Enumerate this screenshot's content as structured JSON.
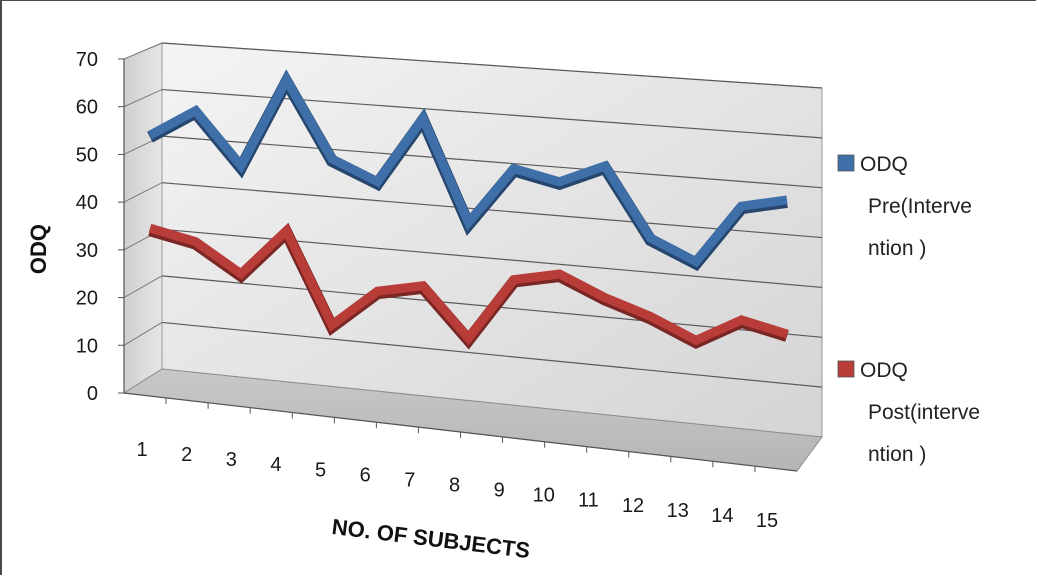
{
  "chart_data": {
    "type": "line",
    "title": "",
    "xlabel": "NO. OF SUBJECTS",
    "ylabel": "ODQ",
    "ylim": [
      0,
      70
    ],
    "y_ticks": [
      0,
      10,
      20,
      30,
      40,
      50,
      60,
      70
    ],
    "categories": [
      "1",
      "2",
      "3",
      "4",
      "5",
      "6",
      "7",
      "8",
      "9",
      "10",
      "11",
      "12",
      "13",
      "14",
      "15"
    ],
    "grid": true,
    "legend_position": "right",
    "series": [
      {
        "name": "ODQ Pre(Intervention )",
        "legend_lines": [
          "ODQ",
          "Pre(Interve",
          "ntion )"
        ],
        "color": "#3f6fa8",
        "values": [
          50,
          56,
          45,
          64,
          48,
          44,
          58,
          37,
          49,
          47,
          51,
          37,
          33,
          45,
          47
        ]
      },
      {
        "name": "ODQ Post(intervention )",
        "legend_lines": [
          "ODQ",
          "Post(interve",
          "ntion )"
        ],
        "color": "#b83c38",
        "values": [
          30,
          28,
          22,
          32,
          13,
          21,
          23,
          13,
          26,
          28,
          24,
          21,
          17,
          22,
          20
        ]
      }
    ]
  }
}
